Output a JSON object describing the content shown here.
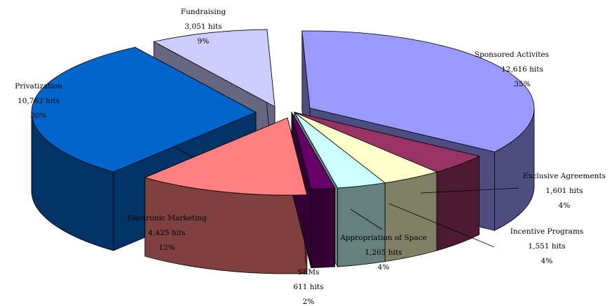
{
  "chart_data": {
    "type": "pie",
    "style": "3d-exploded",
    "unit_suffix": "hits",
    "categories": [
      "Sponsored Activites",
      "Exclusive Agreements",
      "Incentive Programs",
      "Appropriation of Space",
      "SEMs",
      "Electronic Marketing",
      "Privatization",
      "Fundraising"
    ],
    "values": [
      12616,
      1601,
      1551,
      1265,
      611,
      4425,
      10762,
      3051
    ],
    "labels": [
      {
        "name": "Sponsored Activites",
        "value": "12,616 hits",
        "percent": "35%"
      },
      {
        "name": "Exclusive Agreements",
        "value": "1,601 hits",
        "percent": "4%"
      },
      {
        "name": "Incentive Programs",
        "value": "1,551 hits",
        "percent": "4%"
      },
      {
        "name": "Appropriation of Space",
        "value": "1,265 hits",
        "percent": "4%"
      },
      {
        "name": "SEMs",
        "value": "611 hits",
        "percent": "2%"
      },
      {
        "name": "Electronic Marketing",
        "value": "4,425 hits",
        "percent": "12%"
      },
      {
        "name": "Privatization",
        "value": "10,762 hits",
        "percent": "30%"
      },
      {
        "name": "Fundraising",
        "value": "3,051 hits",
        "percent": "9%"
      }
    ],
    "colors": [
      "#9999ff",
      "#993366",
      "#ffffcc",
      "#ccffff",
      "#660066",
      "#ff8080",
      "#0066cc",
      "#ccccff"
    ],
    "side_colors": [
      "#4d4d80",
      "#4d1a33",
      "#808066",
      "#668080",
      "#330033",
      "#804040",
      "#003366",
      "#666680"
    ],
    "title": "",
    "legend": "none"
  }
}
